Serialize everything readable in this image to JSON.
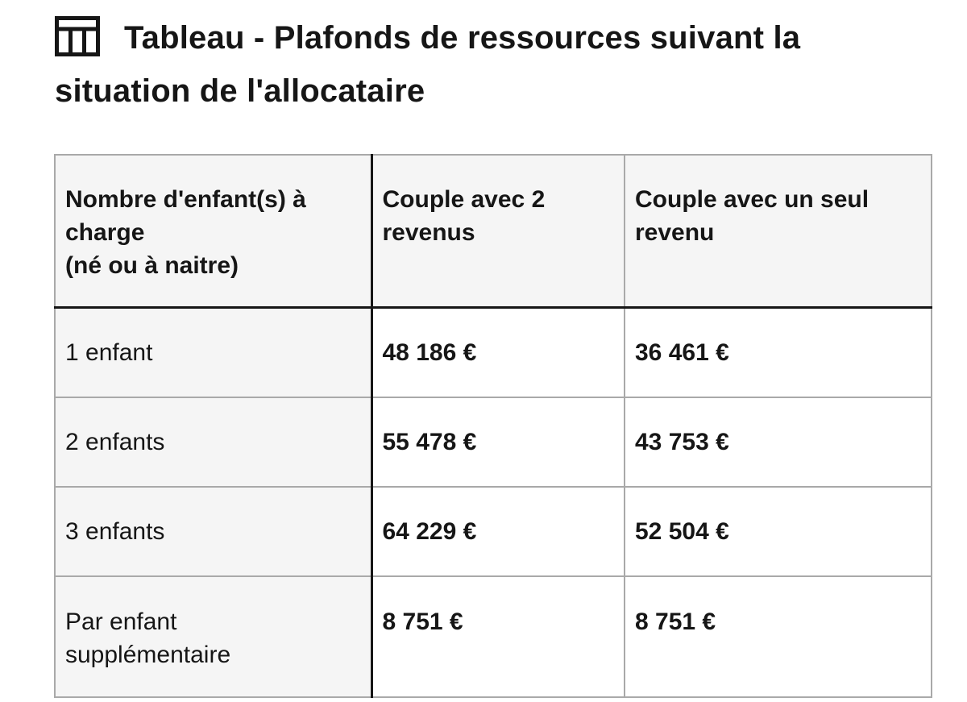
{
  "title": {
    "text": "Tableau - Plafonds de ressources suivant la situation de l'allocataire",
    "icon": "table-icon"
  },
  "table": {
    "headers": [
      "Nombre d'enfant(s) à\ncharge\n(né ou à naitre)",
      "Couple avec 2\nrevenus",
      "Couple avec un seul\nrevenu"
    ],
    "rows": [
      {
        "label": "1 enfant",
        "two_incomes": "48 186 €",
        "one_income": "36 461 €"
      },
      {
        "label": "2 enfants",
        "two_incomes": "55 478 €",
        "one_income": "43 753 €"
      },
      {
        "label": "3 enfants",
        "two_incomes": "64 229 €",
        "one_income": "52 504 €"
      },
      {
        "label": "Par enfant\nsupplémentaire",
        "two_incomes": "8 751 €",
        "one_income": "8 751 €"
      }
    ]
  },
  "colors": {
    "text": "#161616",
    "header_bg": "#f5f5f5",
    "border": "#a9a9a9"
  }
}
